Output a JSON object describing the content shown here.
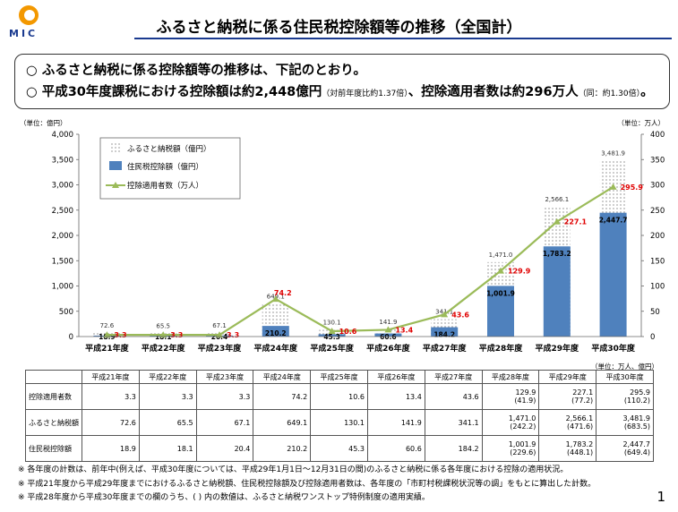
{
  "header": {
    "logo_text": "MIC",
    "title": "ふるさと納税に係る住民税控除額等の推移（全国計）"
  },
  "summary": {
    "line1": "○ ふるさと納税に係る控除額等の推移は、下記のとおり。",
    "line2_main": "○ 平成30年度課税における控除額は約2,448億円",
    "line2_note1": "（対前年度比約1.37倍）",
    "line2_mid": "、控除適用者数は約296万人",
    "line2_note2": "（同：約1.30倍）",
    "line2_end": "。"
  },
  "chart_data": {
    "type": "bar",
    "categories": [
      "平成21年度",
      "平成22年度",
      "平成23年度",
      "平成24年度",
      "平成25年度",
      "平成26年度",
      "平成27年度",
      "平成28年度",
      "平成29年度",
      "平成30年度"
    ],
    "left_unit": "（単位：億円）",
    "right_unit": "（単位：万人）",
    "ylim": [
      0,
      4000
    ],
    "y2lim": [
      0,
      400
    ],
    "yticks": [
      "0",
      "500",
      "1,000",
      "1,500",
      "2,000",
      "2,500",
      "3,000",
      "3,500",
      "4,000"
    ],
    "y2ticks": [
      "0",
      "50",
      "100",
      "150",
      "200",
      "250",
      "300",
      "350",
      "400"
    ],
    "legend": {
      "donation": "ふるさと納税額（億円）",
      "deduction": "住民税控除額（億円）",
      "users": "控除適用者数（万人）"
    },
    "series": [
      {
        "name": "ふるさと納税額（億円）",
        "values": [
          72.6,
          65.5,
          67.1,
          649.1,
          130.1,
          141.9,
          341.1,
          1471.0,
          2566.1,
          3481.9
        ],
        "labels": [
          "72.6",
          "65.5",
          "67.1",
          "649.1",
          "130.1",
          "141.9",
          "341.1",
          "1,471.0",
          "2,566.1",
          "3,481.9"
        ]
      },
      {
        "name": "住民税控除額（億円）",
        "values": [
          18.9,
          18.1,
          20.4,
          210.2,
          45.3,
          60.6,
          184.2,
          1001.9,
          1783.2,
          2447.7
        ],
        "labels": [
          "18.9",
          "18.1",
          "20.4",
          "210.2",
          "45.3",
          "60.6",
          "184.2",
          "1,001.9",
          "1,783.2",
          "2,447.7"
        ]
      },
      {
        "name": "控除適用者数（万人）",
        "values": [
          3.3,
          3.3,
          3.3,
          74.2,
          10.6,
          13.4,
          43.6,
          129.9,
          227.1,
          295.9
        ],
        "labels": [
          "3.3",
          "3.3",
          "3.3",
          "74.2",
          "10.6",
          "13.4",
          "43.6",
          "129.9",
          "227.1",
          "295.9"
        ]
      }
    ],
    "colors": {
      "bar": "#4f81bd",
      "line": "#9bbb59",
      "line_label": "#e00000"
    }
  },
  "table": {
    "unit": "（単位：万人、億円）",
    "headers": [
      "平成21年度",
      "平成22年度",
      "平成23年度",
      "平成24年度",
      "平成25年度",
      "平成26年度",
      "平成27年度",
      "平成28年度",
      "平成29年度",
      "平成30年度"
    ],
    "rows": [
      {
        "label": "控除適用者数",
        "cells": [
          "3.3",
          "3.3",
          "3.3",
          "74.2",
          "10.6",
          "13.4",
          "43.6",
          "129.9",
          "227.1",
          "295.9"
        ],
        "sub": [
          "",
          "",
          "",
          "",
          "",
          "",
          "",
          "(41.9)",
          "(77.2)",
          "(110.2)"
        ]
      },
      {
        "label": "ふるさと納税額",
        "cells": [
          "72.6",
          "65.5",
          "67.1",
          "649.1",
          "130.1",
          "141.9",
          "341.1",
          "1,471.0",
          "2,566.1",
          "3,481.9"
        ],
        "sub": [
          "",
          "",
          "",
          "",
          "",
          "",
          "",
          "(242.2)",
          "(471.6)",
          "(683.5)"
        ]
      },
      {
        "label": "住民税控除額",
        "cells": [
          "18.9",
          "18.1",
          "20.4",
          "210.2",
          "45.3",
          "60.6",
          "184.2",
          "1,001.9",
          "1,783.2",
          "2,447.7"
        ],
        "sub": [
          "",
          "",
          "",
          "",
          "",
          "",
          "",
          "(229.6)",
          "(448.1)",
          "(649.4)"
        ]
      }
    ]
  },
  "notes": [
    "※ 各年度の計数は、前年中(例えば、平成30年度については、平成29年1月1日～12月31日の間)のふるさと納税に係る各年度における控除の適用状況。",
    "※ 平成21年度から平成29年度までにおけるふるさと納税額、住民税控除額及び控除適用者数は、各年度の「市町村税課税状況等の調」をもとに算出した計数。",
    "※ 平成28年度から平成30年度までの欄のうち、( ) 内の数値は、ふるさと納税ワンストップ特例制度の適用実績。"
  ],
  "page_number": "1"
}
